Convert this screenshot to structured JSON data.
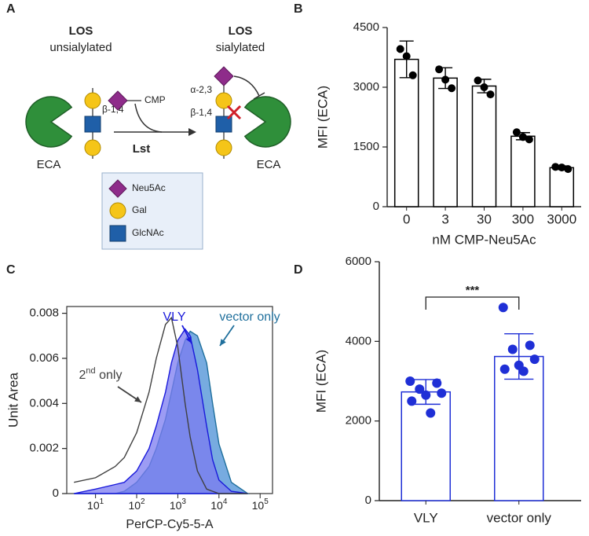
{
  "panel_labels": [
    "A",
    "B",
    "C",
    "D"
  ],
  "diagram": {
    "left_title": "LOS",
    "left_subtitle": "unsialylated",
    "right_title": "LOS",
    "right_subtitle": "sialylated",
    "left_lectin": "ECA",
    "right_lectin": "ECA",
    "left_linkage": "β-1,4",
    "right_linkage_top": "α-2,3",
    "right_linkage_bottom": "β-1,4",
    "donor": "CMP",
    "enzyme": "Lst",
    "legend": [
      "Neu5Ac",
      "Gal",
      "GlcNAc"
    ]
  },
  "chart_data": [
    {
      "type": "bar",
      "categories": [
        "0",
        "3",
        "30",
        "300",
        "3000"
      ],
      "values": [
        3700,
        3230,
        3030,
        1770,
        980
      ],
      "errors": [
        460,
        260,
        170,
        90,
        45
      ],
      "points": [
        [
          3960,
          3780,
          3300
        ],
        [
          3450,
          3190,
          2975
        ],
        [
          3170,
          3000,
          2820
        ],
        [
          1870,
          1750,
          1690
        ],
        [
          1000,
          985,
          945
        ]
      ],
      "ylim": [
        0,
        4500
      ],
      "yticks": [
        0,
        1500,
        3000,
        4500
      ],
      "y_label": "MFI (ECA)",
      "x_label": "nM CMP-Neu5Ac",
      "color": "#000000"
    },
    {
      "type": "area",
      "x": [
        3,
        10,
        30,
        50,
        100,
        200,
        300,
        500,
        700,
        1000,
        1500,
        2000,
        3000,
        5000,
        7000,
        10000,
        20000,
        50000
      ],
      "xscale": "log",
      "xlim": [
        2,
        200000
      ],
      "xticks": [
        {
          "value": 10,
          "label": "10",
          "exponent": "1"
        },
        {
          "value": 100,
          "label": "10",
          "exponent": "2"
        },
        {
          "value": 1000,
          "label": "10",
          "exponent": "3"
        },
        {
          "value": 10000,
          "label": "10",
          "exponent": "4"
        },
        {
          "value": 100000,
          "label": "10",
          "exponent": "5"
        }
      ],
      "ylim": [
        0,
        0.0083
      ],
      "yticks": [
        0,
        0.002,
        0.004,
        0.006,
        0.008
      ],
      "y_label": "Unit Area",
      "x_label": "PerCP-Cy5-5-A",
      "series": [
        {
          "name": "vector only",
          "color": "#1f6f9c",
          "fill": "#4a8fd6",
          "values": [
            0,
            0,
            0,
            0.0001,
            0.0005,
            0.0012,
            0.002,
            0.0033,
            0.0045,
            0.0058,
            0.0068,
            0.0072,
            0.007,
            0.0058,
            0.004,
            0.0022,
            0.0005,
            0
          ]
        },
        {
          "name": "VLY",
          "color": "#1a1adb",
          "fill": "#7b7bf0",
          "values": [
            0,
            0.0002,
            0.0004,
            0.0005,
            0.001,
            0.002,
            0.003,
            0.0045,
            0.0058,
            0.0068,
            0.0073,
            0.007,
            0.0055,
            0.003,
            0.0015,
            0.0006,
            0.0001,
            0
          ]
        },
        {
          "name": "2nd only",
          "color": "#404040",
          "fill": "none",
          "values": [
            0.0005,
            0.0007,
            0.0012,
            0.0016,
            0.0027,
            0.0045,
            0.006,
            0.0075,
            0.0078,
            0.0065,
            0.004,
            0.0025,
            0.001,
            0.0002,
            0.0001,
            0,
            0,
            0
          ]
        }
      ]
    },
    {
      "type": "bar",
      "categories": [
        "VLY",
        "vector only"
      ],
      "values": [
        2730,
        3620
      ],
      "errors": [
        310,
        570
      ],
      "points": [
        [
          3000,
          2950,
          2800,
          2700,
          2650,
          2500,
          2200
        ],
        [
          4850,
          3900,
          3800,
          3550,
          3400,
          3300,
          3250
        ]
      ],
      "ylim": [
        0,
        6000
      ],
      "yticks": [
        0,
        2000,
        4000,
        6000
      ],
      "y_label": "MFI (ECA)",
      "color": "#1f2fd6",
      "annotation": "***"
    }
  ]
}
